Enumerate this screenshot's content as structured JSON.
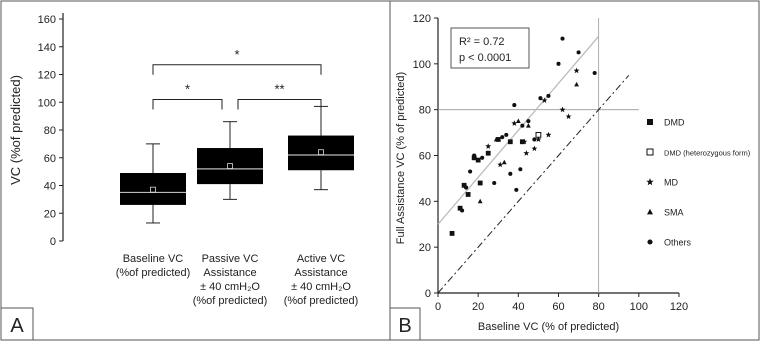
{
  "chart_data": [
    {
      "type": "box",
      "panel_label": "A",
      "ylabel": "VC (%of predicted)",
      "ylim": [
        0,
        160
      ],
      "yticks": [
        0,
        20,
        40,
        60,
        80,
        100,
        120,
        140,
        160
      ],
      "categories": [
        [
          "Baseline VC",
          "(%of predicted)"
        ],
        [
          "Passive VC",
          "Assistance",
          "± 40 cmH₂O",
          "(%of predicted)"
        ],
        [
          "Active VC",
          "Assistance",
          "± 40 cmH₂O",
          "(%of predicted)"
        ]
      ],
      "boxes": [
        {
          "whisker_low": 13,
          "q1": 26,
          "median": 35,
          "q3": 49,
          "whisker_high": 70,
          "mean": 37
        },
        {
          "whisker_low": 30,
          "q1": 41,
          "median": 52,
          "q3": 67,
          "whisker_high": 86,
          "mean": 54
        },
        {
          "whisker_low": 37,
          "q1": 51,
          "median": 62,
          "q3": 76,
          "whisker_high": 97,
          "mean": 64
        }
      ],
      "significance": [
        {
          "from": 0,
          "to": 2,
          "y": 127,
          "label": "*"
        },
        {
          "from": 0,
          "to": 1,
          "y": 102,
          "label": "*"
        },
        {
          "from": 1,
          "to": 2,
          "y": 102,
          "label": "**"
        }
      ],
      "box_color": "#000000",
      "median_color": "#bbbbbb"
    },
    {
      "type": "scatter",
      "panel_label": "B",
      "xlabel": "Baseline VC (% of predicted)",
      "ylabel": "Full Assistance VC (% of predicted)",
      "xlim": [
        0,
        120
      ],
      "ylim": [
        0,
        120
      ],
      "xticks": [
        0,
        20,
        40,
        60,
        80,
        100,
        120
      ],
      "yticks": [
        0,
        20,
        40,
        60,
        80,
        100,
        120
      ],
      "stats": {
        "r2": "R² = 0.72",
        "p": "p < 0.0001"
      },
      "reference_lines": {
        "x": 80,
        "y": 80
      },
      "regression": {
        "x": [
          0,
          80
        ],
        "y": [
          30,
          112
        ],
        "color": "#bbbbbb"
      },
      "identity_line": {
        "x": [
          0,
          95
        ],
        "y": [
          0,
          95
        ]
      },
      "legend": [
        {
          "marker": "square",
          "label": "DMD"
        },
        {
          "marker": "square-open",
          "label": "DMD (heterozygous form)"
        },
        {
          "marker": "star",
          "label": "MD"
        },
        {
          "marker": "triangle",
          "label": "SMA"
        },
        {
          "marker": "circle",
          "label": "Others"
        }
      ],
      "series": [
        {
          "marker": "square",
          "x": [
            7,
            11,
            13,
            20,
            21,
            25,
            15,
            18,
            30,
            36,
            42
          ],
          "y": [
            26,
            37,
            47,
            58,
            48,
            61,
            43,
            59,
            67,
            66,
            66
          ]
        },
        {
          "marker": "square-open",
          "x": [
            50
          ],
          "y": [
            69
          ]
        },
        {
          "marker": "star",
          "x": [
            25,
            31,
            38,
            43,
            44,
            48,
            50,
            53,
            55,
            62,
            65,
            69
          ],
          "y": [
            64,
            56,
            74,
            66,
            61,
            63,
            67,
            84,
            69,
            80,
            77,
            97
          ]
        },
        {
          "marker": "triangle",
          "x": [
            21,
            29,
            33,
            40,
            45,
            69
          ],
          "y": [
            40,
            67,
            57,
            75,
            73,
            91
          ]
        },
        {
          "marker": "circle",
          "x": [
            12,
            14,
            16,
            18,
            22,
            28,
            32,
            34,
            36,
            38,
            39,
            41,
            42,
            45,
            48,
            51,
            55,
            60,
            62,
            70,
            78
          ],
          "y": [
            36,
            46,
            53,
            60,
            59,
            48,
            68,
            69,
            52,
            82,
            45,
            54,
            73,
            75,
            67,
            85,
            86,
            100,
            111,
            105,
            96
          ]
        }
      ]
    }
  ]
}
